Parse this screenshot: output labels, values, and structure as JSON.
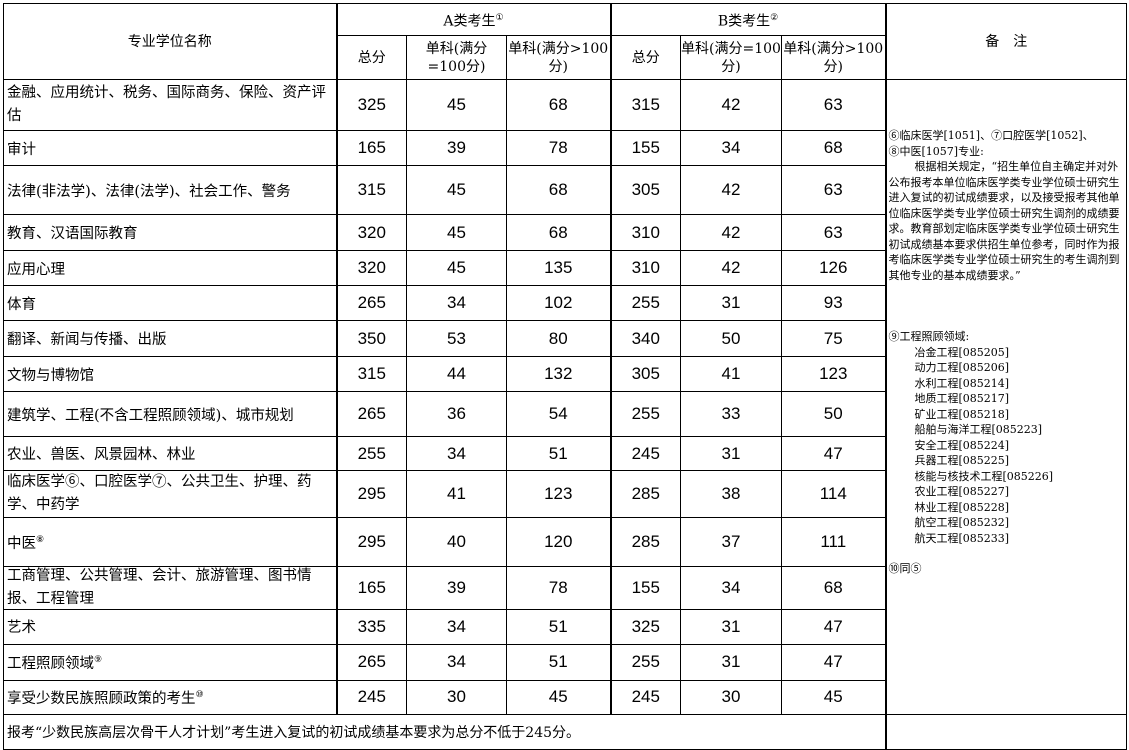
{
  "header": {
    "name_col": "专业学位名称",
    "group_a": "A类考生",
    "group_a_mark": "①",
    "group_b": "B类考生",
    "group_b_mark": "②",
    "notes_col": "备　注",
    "sub_total": "总分",
    "sub_single100": "单科(满分=100分)",
    "sub_single_gt100": "单科(满分>100分)"
  },
  "rows": [
    {
      "name": "金融、应用统计、税务、国际商务、保险、资产评估",
      "mark": "",
      "a": [
        "325",
        "45",
        "68"
      ],
      "b": [
        "315",
        "42",
        "63"
      ]
    },
    {
      "name": "审计",
      "mark": "",
      "a": [
        "165",
        "39",
        "78"
      ],
      "b": [
        "155",
        "34",
        "68"
      ]
    },
    {
      "name": "法律(非法学)、法律(法学)、社会工作、警务",
      "mark": "",
      "a": [
        "315",
        "45",
        "68"
      ],
      "b": [
        "305",
        "42",
        "63"
      ]
    },
    {
      "name": "教育、汉语国际教育",
      "mark": "",
      "a": [
        "320",
        "45",
        "68"
      ],
      "b": [
        "310",
        "42",
        "63"
      ]
    },
    {
      "name": "应用心理",
      "mark": "",
      "a": [
        "320",
        "45",
        "135"
      ],
      "b": [
        "310",
        "42",
        "126"
      ]
    },
    {
      "name": "体育",
      "mark": "",
      "a": [
        "265",
        "34",
        "102"
      ],
      "b": [
        "255",
        "31",
        "93"
      ]
    },
    {
      "name": "翻译、新闻与传播、出版",
      "mark": "",
      "a": [
        "350",
        "53",
        "80"
      ],
      "b": [
        "340",
        "50",
        "75"
      ]
    },
    {
      "name": "文物与博物馆",
      "mark": "",
      "a": [
        "315",
        "44",
        "132"
      ],
      "b": [
        "305",
        "41",
        "123"
      ]
    },
    {
      "name": "建筑学、工程(不含工程照顾领域)、城市规划",
      "mark": "",
      "a": [
        "265",
        "36",
        "54"
      ],
      "b": [
        "255",
        "33",
        "50"
      ]
    },
    {
      "name": "农业、兽医、风景园林、林业",
      "mark": "",
      "a": [
        "255",
        "34",
        "51"
      ],
      "b": [
        "245",
        "31",
        "47"
      ]
    },
    {
      "name": "临床医学⑥、口腔医学⑦、公共卫生、护理、药学、中药学",
      "mark": "",
      "a": [
        "295",
        "41",
        "123"
      ],
      "b": [
        "285",
        "38",
        "114"
      ]
    },
    {
      "name": "中医",
      "mark": "⑧",
      "a": [
        "295",
        "40",
        "120"
      ],
      "b": [
        "285",
        "37",
        "111"
      ]
    },
    {
      "name": "工商管理、公共管理、会计、旅游管理、图书情报、工程管理",
      "mark": "",
      "a": [
        "165",
        "39",
        "78"
      ],
      "b": [
        "155",
        "34",
        "68"
      ]
    },
    {
      "name": "艺术",
      "mark": "",
      "a": [
        "335",
        "34",
        "51"
      ],
      "b": [
        "325",
        "31",
        "47"
      ]
    },
    {
      "name": "工程照顾领域",
      "mark": "⑨",
      "a": [
        "265",
        "34",
        "51"
      ],
      "b": [
        "255",
        "31",
        "47"
      ]
    },
    {
      "name": "享受少数民族照顾政策的考生",
      "mark": "⑩",
      "a": [
        "245",
        "30",
        "45"
      ],
      "b": [
        "245",
        "30",
        "45"
      ]
    }
  ],
  "notes": {
    "n678_title1": "⑥临床医学[1051]、⑦口腔医学[1052]、",
    "n678_title2": "⑧中医[1057]专业:",
    "n678_body": "根据相关规定，“招生单位自主确定并对外公布报考本单位临床医学类专业学位硕士研究生进入复试的初试成绩要求，以及接受报考其他单位临床医学类专业学位硕士研究生调剂的成绩要求。教育部划定临床医学类专业学位硕士研究生初试成绩基本要求供招生单位参考，同时作为报考临床医学类专业学位硕士研究生的考生调剂到其他专业的基本成绩要求。”",
    "n9_title": "⑨工程照顾领域:",
    "n9_items": [
      "冶金工程[085205]",
      "动力工程[085206]",
      "水利工程[085214]",
      "地质工程[085217]",
      "矿业工程[085218]",
      "船舶与海洋工程[085223]",
      "安全工程[085224]",
      "兵器工程[085225]",
      "核能与核技术工程[085226]",
      "农业工程[085227]",
      "林业工程[085228]",
      "航空工程[085232]",
      "航天工程[085233]"
    ],
    "n10": "⑩同⑤"
  },
  "footer": "报考“少数民族高层次骨干人才计划”考生进入复试的初试成绩基本要求为总分不低于245分。"
}
